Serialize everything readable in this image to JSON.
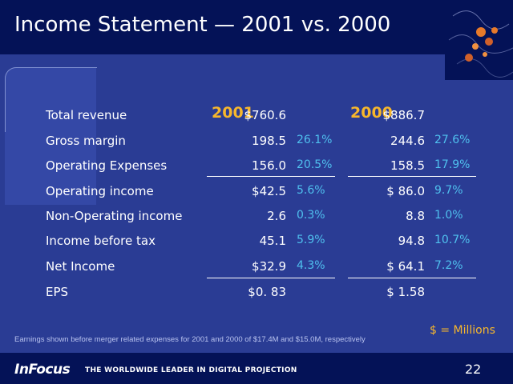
{
  "slide": {
    "title": "Income Statement — 2001 vs. 2000",
    "year_2001": "2001",
    "year_2000": "2000",
    "rows": [
      {
        "label": "Total revenue",
        "v2001": "$760.6",
        "p2001": "",
        "v2000": "$886.7",
        "p2000": ""
      },
      {
        "label": "Gross margin",
        "v2001": "198.5",
        "p2001": "26.1%",
        "v2000": "244.6",
        "p2000": "27.6%"
      },
      {
        "label": "Operating Expenses",
        "v2001": "156.0",
        "p2001": "20.5%",
        "v2000": "158.5",
        "p2000": "17.9%"
      },
      {
        "label": "Operating income",
        "v2001": "$42.5",
        "p2001": "5.6%",
        "v2000": "$ 86.0",
        "p2000": "9.7%"
      },
      {
        "label": "Non-Operating income",
        "v2001": "2.6",
        "p2001": "0.3%",
        "v2000": "8.8",
        "p2000": "1.0%"
      },
      {
        "label": "Income before tax",
        "v2001": "45.1",
        "p2001": "5.9%",
        "v2000": "94.8",
        "p2000": "10.7%"
      },
      {
        "label": "Net Income",
        "v2001": "$32.9",
        "p2001": "4.3%",
        "v2000": "$ 64.1",
        "p2000": "7.2%"
      },
      {
        "label": "EPS",
        "v2001": "$0. 83",
        "p2001": "",
        "v2000": "$ 1.58",
        "p2000": ""
      }
    ],
    "footnote": "Earnings shown before merger related expenses for 2001 and 2000 of $17.4M and $15.0M, respectively",
    "units": "$ = Millions",
    "page_number": "22"
  },
  "footer": {
    "logo": "InFocus",
    "tagline": "THE WORLDWIDE LEADER IN DIGITAL PROJECTION"
  },
  "colors": {
    "background": "#2a3c94",
    "header": "#041257",
    "accent_year": "#f7b72c",
    "percent": "#4fc0ee"
  }
}
